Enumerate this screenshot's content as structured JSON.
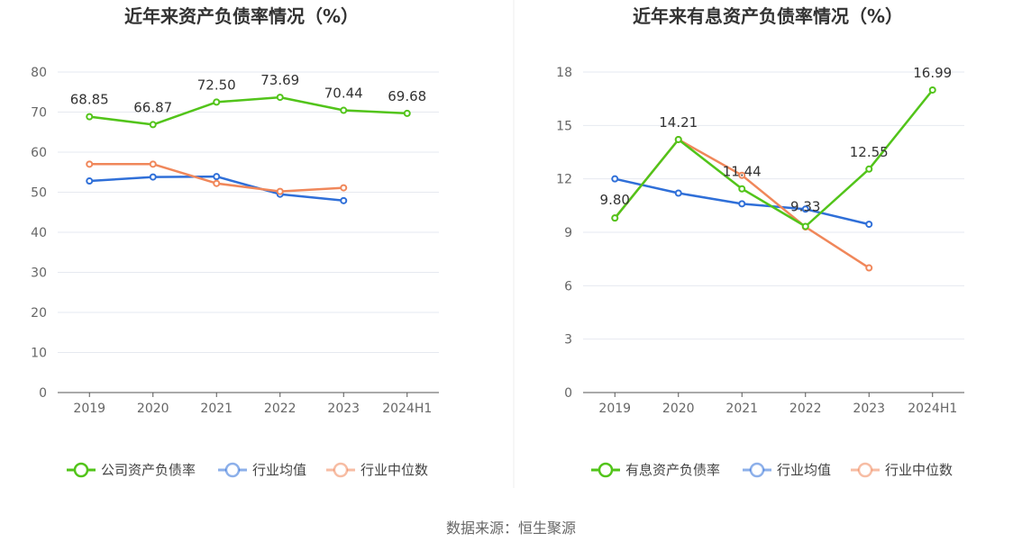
{
  "source": "数据来源：恒生聚源",
  "chart_data": [
    {
      "type": "line",
      "title": "近年来资产负债率情况（%）",
      "x": [
        "2019",
        "2020",
        "2021",
        "2022",
        "2023",
        "2024H1"
      ],
      "ylim": [
        0,
        80
      ],
      "yticks": [
        0,
        10,
        20,
        30,
        40,
        50,
        60,
        70,
        80
      ],
      "grid": true,
      "legend_position": "bottom",
      "series": [
        {
          "name": "公司资产负债率",
          "color": "#52c41a",
          "values": [
            68.85,
            66.87,
            72.5,
            73.69,
            70.44,
            69.68
          ],
          "labels": [
            "68.85",
            "66.87",
            "72.50",
            "73.69",
            "70.44",
            "69.68"
          ]
        },
        {
          "name": "行业均值",
          "color": "#2f6fd8",
          "values": [
            52.8,
            53.8,
            53.9,
            49.5,
            47.9,
            null
          ]
        },
        {
          "name": "行业中位数",
          "color": "#f0875a",
          "values": [
            57.0,
            57.0,
            52.2,
            50.2,
            51.1,
            null
          ]
        }
      ]
    },
    {
      "type": "line",
      "title": "近年来有息资产负债率情况（%）",
      "x": [
        "2019",
        "2020",
        "2021",
        "2022",
        "2023",
        "2024H1"
      ],
      "ylim": [
        0,
        18
      ],
      "yticks": [
        0,
        3,
        6,
        9,
        12,
        15,
        18
      ],
      "grid": true,
      "legend_position": "bottom",
      "series": [
        {
          "name": "有息资产负债率",
          "color": "#52c41a",
          "values": [
            9.8,
            14.21,
            11.44,
            9.33,
            12.55,
            16.99
          ],
          "labels": [
            "9.80",
            "14.21",
            "11.44",
            "9.33",
            "12.55",
            "16.99"
          ]
        },
        {
          "name": "行业均值",
          "color": "#2f6fd8",
          "values": [
            12.0,
            11.2,
            10.6,
            10.3,
            9.45,
            null
          ]
        },
        {
          "name": "行业中位数",
          "color": "#f0875a",
          "values": [
            9.8,
            14.21,
            12.2,
            9.3,
            7.0,
            null
          ]
        }
      ]
    }
  ]
}
